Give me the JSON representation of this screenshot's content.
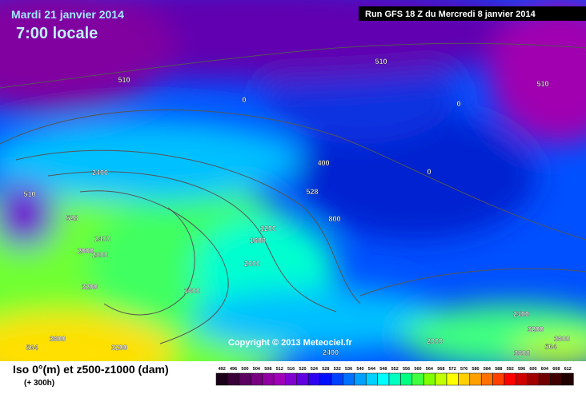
{
  "header": {
    "date": "Mardi 21 janvier 2014",
    "time": "7:00 locale",
    "run": "Run GFS 18 Z du Mercredi 8 janvier 2014"
  },
  "copyright": "Copyright © 2013 Meteociel.fr",
  "footer": {
    "title": "Iso 0°(m) et z500-z1000 (dam)",
    "lead": "(+ 300h)"
  },
  "contour_labels": [
    510,
    0,
    510,
    0,
    510,
    2400,
    510,
    528,
    400,
    528,
    0,
    800,
    1200,
    1600,
    2400,
    2000,
    2800,
    2000,
    1600,
    3200,
    3600,
    3200,
    564,
    2400,
    2000,
    2400,
    3200,
    3600,
    3608,
    564
  ],
  "legend": {
    "labels": [
      492,
      496,
      500,
      504,
      508,
      512,
      516,
      520,
      524,
      528,
      532,
      536,
      540,
      544,
      548,
      552,
      556,
      560,
      564,
      568,
      572,
      576,
      580,
      584,
      588,
      592,
      596,
      600,
      604,
      608,
      612
    ],
    "colors": [
      "#1a0018",
      "#3a0038",
      "#5a0060",
      "#780080",
      "#9000a0",
      "#a000b8",
      "#8000d0",
      "#6000e0",
      "#3000f0",
      "#0010ff",
      "#0040ff",
      "#0070ff",
      "#00a0ff",
      "#00d0ff",
      "#00ffff",
      "#00ffc0",
      "#00ff80",
      "#40ff40",
      "#80ff00",
      "#c0ff00",
      "#ffff00",
      "#ffd000",
      "#ffa000",
      "#ff7000",
      "#ff4000",
      "#ff0000",
      "#d00000",
      "#a00000",
      "#700000",
      "#400000",
      "#200000"
    ]
  }
}
